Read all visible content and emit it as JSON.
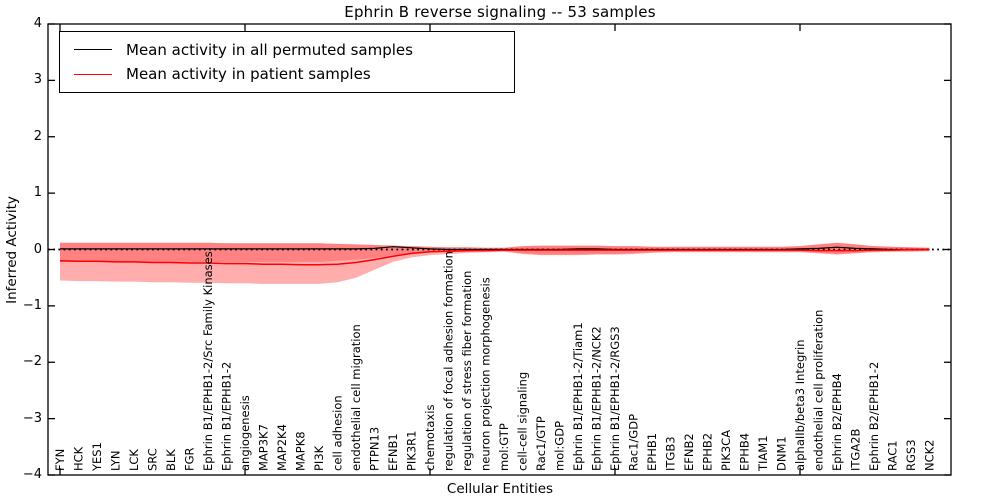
{
  "chart_data": {
    "type": "line",
    "title": "Ephrin B reverse signaling -- 53 samples",
    "xlabel": "Cellular Entities",
    "ylabel": "Inferred Activity",
    "ylim": [
      -4,
      4
    ],
    "yticks": [
      "4",
      "3",
      "2",
      "1",
      "0",
      "−1",
      "−2",
      "−3",
      "−4"
    ],
    "grid": false,
    "legend_position": "upper left",
    "zero_line": {
      "style": "dotted",
      "color": "#000000"
    },
    "categories": [
      "FYN",
      "HCK",
      "YES1",
      "LYN",
      "LCK",
      "SRC",
      "BLK",
      "FGR",
      "Ephrin B1/EPHB1-2/Src Family Kinases",
      "Ephrin B1/EPHB1-2",
      "angiogenesis",
      "MAP3K7",
      "MAP2K4",
      "MAPK8",
      "PI3K",
      "cell adhesion",
      "endothelial cell migration",
      "PTPN13",
      "EFNB1",
      "PIK3R1",
      "chemotaxis",
      "regulation of focal adhesion formation",
      "regulation of stress fiber formation",
      "neuron projection morphogenesis",
      "mol:GTP",
      "cell-cell signaling",
      "Rac1/GTP",
      "mol:GDP",
      "Ephrin B1/EPHB1-2/Tiam1",
      "Ephrin B1/EPHB1-2/NCK2",
      "Ephrin B1/EPHB1-2/RGS3",
      "Rac1/GDP",
      "EPHB1",
      "ITGB3",
      "EFNB2",
      "EPHB2",
      "PIK3CA",
      "EPHB4",
      "TIAM1",
      "DNM1",
      "alphaIIb/beta3 Integrin",
      "endothelial cell proliferation",
      "Ephrin B2/EPHB4",
      "ITGA2B",
      "Ephrin B2/EPHB1-2",
      "RAC1",
      "RGS3",
      "NCK2"
    ],
    "series": [
      {
        "name": "Mean activity in all permuted samples",
        "color": "#000000",
        "values": [
          0.01,
          0.01,
          0.01,
          0.01,
          0.01,
          0.01,
          0.01,
          0.01,
          0.01,
          0.01,
          0.01,
          0.01,
          0.01,
          0.01,
          0.01,
          0.01,
          0.01,
          0.02,
          0.05,
          0.03,
          0.01,
          0.0,
          0.0,
          0.0,
          0.0,
          0.0,
          0.0,
          0.0,
          0.01,
          0.01,
          0.0,
          0.0,
          0.0,
          0.0,
          0.0,
          0.0,
          0.0,
          0.0,
          0.0,
          0.0,
          0.01,
          0.02,
          0.04,
          0.02,
          0.01,
          0.0,
          0.0,
          0.0
        ]
      },
      {
        "name": "Mean activity in patient samples",
        "color": "#ff0000",
        "values": [
          -0.2,
          -0.21,
          -0.21,
          -0.22,
          -0.22,
          -0.23,
          -0.23,
          -0.24,
          -0.24,
          -0.25,
          -0.25,
          -0.26,
          -0.26,
          -0.27,
          -0.27,
          -0.26,
          -0.23,
          -0.18,
          -0.12,
          -0.07,
          -0.04,
          -0.03,
          -0.02,
          -0.02,
          -0.01,
          -0.01,
          -0.01,
          -0.01,
          -0.01,
          -0.01,
          -0.01,
          -0.01,
          -0.01,
          -0.01,
          -0.01,
          -0.01,
          -0.01,
          -0.01,
          -0.01,
          -0.01,
          -0.01,
          -0.02,
          -0.02,
          -0.02,
          -0.01,
          -0.01,
          0.0,
          0.0
        ]
      }
    ],
    "bands": [
      {
        "name": "patient-activity-spread",
        "fill": "rgba(255,0,0,0.32)",
        "upper": [
          0.12,
          0.12,
          0.12,
          0.12,
          0.12,
          0.12,
          0.12,
          0.12,
          0.12,
          0.11,
          0.11,
          0.11,
          0.11,
          0.11,
          0.11,
          0.1,
          0.09,
          0.08,
          0.07,
          0.06,
          0.05,
          0.04,
          0.04,
          0.03,
          0.03,
          0.06,
          0.07,
          0.07,
          0.07,
          0.07,
          0.06,
          0.06,
          0.05,
          0.05,
          0.05,
          0.05,
          0.05,
          0.05,
          0.05,
          0.05,
          0.06,
          0.09,
          0.12,
          0.09,
          0.06,
          0.05,
          0.04,
          0.03
        ],
        "lower": [
          -0.55,
          -0.56,
          -0.56,
          -0.57,
          -0.57,
          -0.58,
          -0.58,
          -0.59,
          -0.59,
          -0.6,
          -0.6,
          -0.61,
          -0.61,
          -0.61,
          -0.61,
          -0.58,
          -0.5,
          -0.36,
          -0.22,
          -0.14,
          -0.1,
          -0.08,
          -0.06,
          -0.05,
          -0.04,
          -0.08,
          -0.1,
          -0.1,
          -0.1,
          -0.09,
          -0.09,
          -0.08,
          -0.06,
          -0.05,
          -0.05,
          -0.05,
          -0.05,
          -0.05,
          -0.05,
          -0.05,
          -0.05,
          -0.07,
          -0.09,
          -0.07,
          -0.05,
          -0.04,
          -0.04,
          -0.03
        ]
      },
      {
        "name": "permuted-activity-spread",
        "fill": "rgba(255,0,0,0.25)",
        "upper": [
          0.12,
          0.12,
          0.12,
          0.12,
          0.12,
          0.12,
          0.12,
          0.12,
          0.12,
          0.11,
          0.11,
          0.11,
          0.11,
          0.11,
          0.11,
          0.1,
          0.09,
          0.08,
          0.07,
          0.06,
          0.05,
          0.04,
          0.04,
          0.03,
          0.03,
          0.06,
          0.07,
          0.07,
          0.07,
          0.07,
          0.06,
          0.06,
          0.05,
          0.05,
          0.05,
          0.05,
          0.05,
          0.05,
          0.05,
          0.05,
          0.06,
          0.09,
          0.12,
          0.09,
          0.06,
          0.05,
          0.04,
          0.03
        ],
        "lower": [
          -0.22,
          -0.22,
          -0.22,
          -0.22,
          -0.22,
          -0.22,
          -0.22,
          -0.22,
          -0.22,
          -0.22,
          -0.22,
          -0.22,
          -0.22,
          -0.22,
          -0.22,
          -0.2,
          -0.18,
          -0.15,
          -0.1,
          -0.07,
          -0.05,
          -0.04,
          -0.04,
          -0.03,
          -0.03,
          -0.07,
          -0.09,
          -0.09,
          -0.09,
          -0.08,
          -0.08,
          -0.07,
          -0.05,
          -0.04,
          -0.04,
          -0.04,
          -0.04,
          -0.04,
          -0.04,
          -0.04,
          -0.04,
          -0.06,
          -0.08,
          -0.06,
          -0.04,
          -0.03,
          -0.03,
          -0.02
        ]
      }
    ]
  }
}
